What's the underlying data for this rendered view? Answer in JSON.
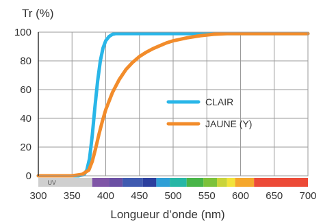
{
  "chart_data": {
    "type": "line",
    "title": "",
    "ylabel": "Tr (%)",
    "xlabel": "Longueur d’onde (nm)",
    "xlim": [
      300,
      700
    ],
    "ylim": [
      0,
      100
    ],
    "xticks": [
      300,
      350,
      400,
      450,
      500,
      550,
      600,
      650,
      700
    ],
    "yticks": [
      0,
      20,
      40,
      60,
      80,
      100
    ],
    "grid": true,
    "legend_position": "center-right",
    "series": [
      {
        "name": "CLAIR",
        "color": "#29b6e8",
        "x": [
          300,
          350,
          360,
          368,
          372,
          376,
          380,
          384,
          388,
          392,
          396,
          400,
          405,
          410,
          415,
          420,
          430,
          450,
          500,
          550,
          600,
          650,
          700
        ],
        "y": [
          0,
          0,
          0,
          1,
          4,
          12,
          28,
          48,
          66,
          80,
          89,
          94,
          97,
          98.5,
          99,
          99,
          99,
          99,
          99,
          99,
          99,
          99,
          99
        ]
      },
      {
        "name": "JAUNE  (Y)",
        "color": "#f28c2b",
        "x": [
          300,
          350,
          365,
          375,
          380,
          385,
          390,
          395,
          400,
          410,
          420,
          430,
          440,
          450,
          460,
          470,
          480,
          490,
          500,
          520,
          540,
          560,
          580,
          600,
          650,
          700
        ],
        "y": [
          0,
          0,
          1,
          4,
          10,
          19,
          29,
          38,
          46,
          58,
          67,
          74,
          79,
          83,
          86,
          88.5,
          90.5,
          92.5,
          94,
          96,
          97.5,
          98.5,
          99,
          99,
          99,
          99
        ]
      }
    ],
    "spectrum_band": {
      "uv_label": "UV",
      "segments": [
        {
          "from": 300,
          "to": 380,
          "color": "#cfcfcf"
        },
        {
          "from": 380,
          "to": 405,
          "color": "#7f55a6"
        },
        {
          "from": 405,
          "to": 425,
          "color": "#6a4fa3"
        },
        {
          "from": 425,
          "to": 455,
          "color": "#3f5ab0"
        },
        {
          "from": 455,
          "to": 475,
          "color": "#2b3f9e"
        },
        {
          "from": 475,
          "to": 495,
          "color": "#2f9fd6"
        },
        {
          "from": 495,
          "to": 520,
          "color": "#27b7a6"
        },
        {
          "from": 520,
          "to": 545,
          "color": "#48b548"
        },
        {
          "from": 545,
          "to": 565,
          "color": "#7cc23a"
        },
        {
          "from": 565,
          "to": 580,
          "color": "#c9d43a"
        },
        {
          "from": 580,
          "to": 592,
          "color": "#f2e33a"
        },
        {
          "from": 592,
          "to": 620,
          "color": "#f5a72c"
        },
        {
          "from": 620,
          "to": 700,
          "color": "#ec4a37"
        }
      ]
    }
  }
}
